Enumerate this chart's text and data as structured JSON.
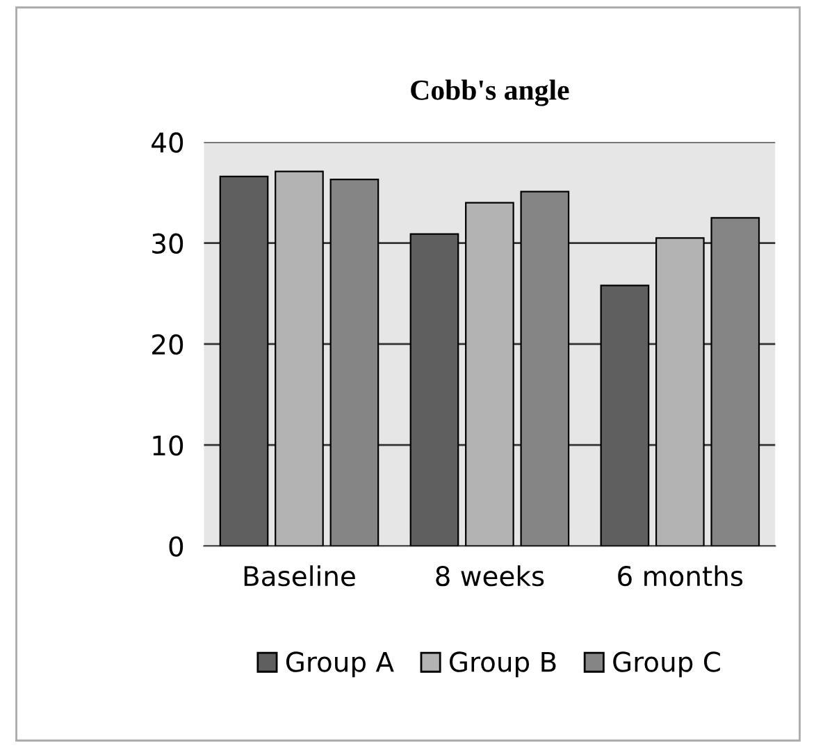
{
  "chart_data": {
    "type": "bar",
    "title": "Cobb's angle",
    "categories": [
      "Baseline",
      "8 weeks",
      "6 months"
    ],
    "series": [
      {
        "name": "Group A",
        "color": "#5f5f5f",
        "values": [
          36.6,
          30.9,
          25.8
        ]
      },
      {
        "name": "Group B",
        "color": "#b3b3b3",
        "values": [
          37.1,
          34.0,
          30.5
        ]
      },
      {
        "name": "Group C",
        "color": "#858585",
        "values": [
          36.3,
          35.1,
          32.5
        ]
      }
    ],
    "ylim": [
      0,
      40
    ],
    "yticks": [
      0,
      10,
      20,
      30,
      40
    ],
    "grid": "y",
    "legend": "bottom"
  }
}
